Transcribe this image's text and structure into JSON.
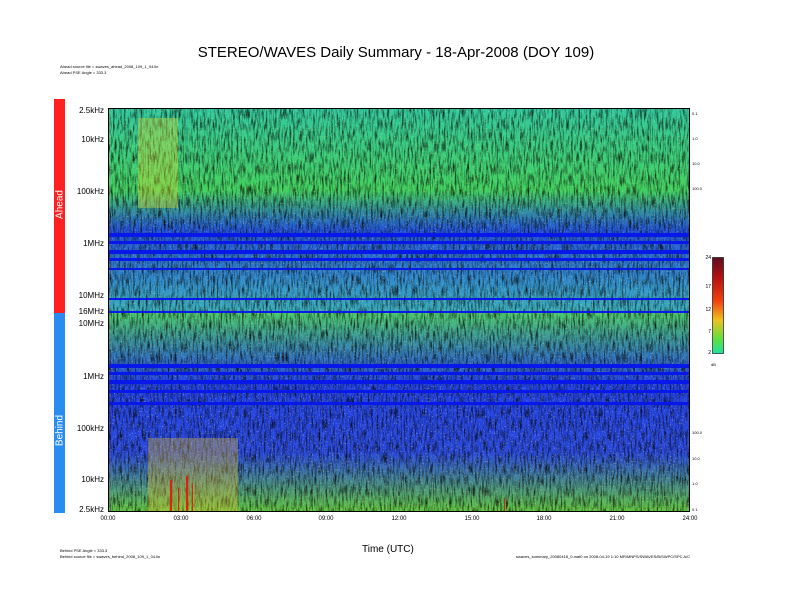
{
  "page": {
    "title": "STEREO/WAVES Daily Summary - 18-Apr-2008 (DOY 109)",
    "ahead_source": "Ahead source file = swaves_ahead_2008_109_1_04.lin",
    "ahead_pse": "Ahead PSE Angle = 333.3",
    "behind_pse": "Behind PSE Angle = 333.3",
    "behind_source": "Behind source file = swaves_behind_2008_109_1_04.lin",
    "footer_right": "swaves_summary_20080418_0.mat0 on 2008-04-19 1:10 MR/MNPS/SWAVES/B/SWPC/SPC A/C",
    "xlabel": "Time (UTC)",
    "ahead_label": "Ahead",
    "behind_label": "Behind",
    "right_ahead": [
      "0.1",
      "1.0",
      "10.0",
      "100.0"
    ],
    "right_behind": [
      "100.0",
      "10.0",
      "1.0",
      "0.1"
    ],
    "colorbar_unit": "dB",
    "colors": {
      "ahead": "#ff2020",
      "behind": "#2a8cf0",
      "low": "#0a20f0",
      "mid": "#38d870",
      "high": "#f0e020",
      "peak": "#e02010"
    }
  },
  "chart_data": {
    "type": "heatmap",
    "title": "STEREO/WAVES Daily Summary - 18-Apr-2008 (DOY 109)",
    "xlabel": "Time (UTC)",
    "x_ticks": [
      "00:00",
      "03:00",
      "06:00",
      "09:00",
      "12:00",
      "15:00",
      "18:00",
      "21:00",
      "24:00"
    ],
    "xlim": [
      0,
      24
    ],
    "ahead_y_ticks": [
      "2.5kHz",
      "10kHz",
      "100kHz",
      "1MHz",
      "10MHz",
      "16MHz"
    ],
    "behind_y_ticks": [
      "10MHz",
      "1MHz",
      "100kHz",
      "10kHz",
      "2.5kHz"
    ],
    "colorbar": {
      "ticks": [
        "24",
        "17",
        "12",
        "7",
        "2"
      ],
      "unit": "dB",
      "range": [
        2,
        24
      ]
    }
  }
}
